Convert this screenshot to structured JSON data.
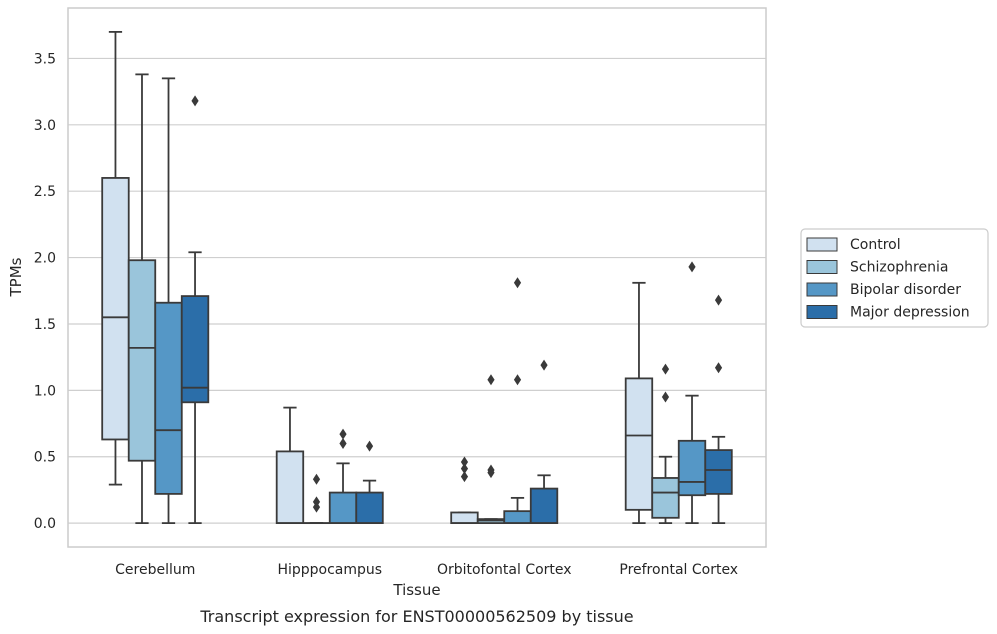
{
  "chart_data": {
    "type": "box",
    "xlabel": "Tissue",
    "ylabel": "TPMs",
    "caption": "Transcript expression for ENST00000562509 by tissue",
    "ylim": [
      -0.18,
      3.88
    ],
    "yticks": [
      0.0,
      0.5,
      1.0,
      1.5,
      2.0,
      2.5,
      3.0,
      3.5
    ],
    "yticklabels": [
      "0.0",
      "0.5",
      "1.0",
      "1.5",
      "2.0",
      "2.5",
      "3.0",
      "3.5"
    ],
    "grid": "horizontal",
    "legend_position": "right",
    "categories": [
      "Cerebellum",
      "Hipppocampus",
      "Orbitofontal Cortex",
      "Prefrontal Cortex"
    ],
    "series": [
      {
        "name": "Control",
        "color": "#d1e1f0",
        "boxes": [
          {
            "whislo": 0.29,
            "q1": 0.63,
            "med": 1.55,
            "q3": 2.6,
            "whishi": 3.7,
            "fliers": []
          },
          {
            "whislo": 0.0,
            "q1": 0.0,
            "med": 0.0,
            "q3": 0.54,
            "whishi": 0.87,
            "fliers": []
          },
          {
            "whislo": 0.0,
            "q1": 0.0,
            "med": 0.0,
            "q3": 0.08,
            "whishi": 0.08,
            "fliers": [
              0.35,
              0.41,
              0.46
            ]
          },
          {
            "whislo": 0.0,
            "q1": 0.1,
            "med": 0.66,
            "q3": 1.09,
            "whishi": 1.81,
            "fliers": []
          }
        ]
      },
      {
        "name": "Schizophrenia",
        "color": "#9ac5db",
        "boxes": [
          {
            "whislo": 0.0,
            "q1": 0.47,
            "med": 1.32,
            "q3": 1.98,
            "whishi": 3.38,
            "fliers": []
          },
          {
            "whislo": 0.0,
            "q1": 0.0,
            "med": 0.0,
            "q3": 0.0,
            "whishi": 0.0,
            "fliers": [
              0.12,
              0.16,
              0.33
            ]
          },
          {
            "whislo": 0.0,
            "q1": 0.0,
            "med": 0.02,
            "q3": 0.03,
            "whishi": 0.03,
            "fliers": [
              0.38,
              0.4,
              1.08
            ]
          },
          {
            "whislo": 0.0,
            "q1": 0.04,
            "med": 0.23,
            "q3": 0.34,
            "whishi": 0.5,
            "fliers": [
              0.95,
              1.16
            ]
          }
        ]
      },
      {
        "name": "Bipolar disorder",
        "color": "#5597c6",
        "boxes": [
          {
            "whislo": 0.0,
            "q1": 0.22,
            "med": 0.7,
            "q3": 1.66,
            "whishi": 3.35,
            "fliers": []
          },
          {
            "whislo": 0.0,
            "q1": 0.0,
            "med": 0.0,
            "q3": 0.23,
            "whishi": 0.45,
            "fliers": [
              0.6,
              0.67
            ]
          },
          {
            "whislo": 0.0,
            "q1": 0.0,
            "med": 0.0,
            "q3": 0.09,
            "whishi": 0.19,
            "fliers": [
              1.08,
              1.81
            ]
          },
          {
            "whislo": 0.0,
            "q1": 0.21,
            "med": 0.31,
            "q3": 0.62,
            "whishi": 0.96,
            "fliers": [
              1.93
            ]
          }
        ]
      },
      {
        "name": "Major depression",
        "color": "#2b6ea9",
        "boxes": [
          {
            "whislo": 0.0,
            "q1": 0.91,
            "med": 1.02,
            "q3": 1.71,
            "whishi": 2.04,
            "fliers": [
              3.18
            ]
          },
          {
            "whislo": 0.0,
            "q1": 0.0,
            "med": 0.0,
            "q3": 0.23,
            "whishi": 0.32,
            "fliers": [
              0.58
            ]
          },
          {
            "whislo": 0.0,
            "q1": 0.0,
            "med": 0.0,
            "q3": 0.26,
            "whishi": 0.36,
            "fliers": [
              1.19
            ]
          },
          {
            "whislo": 0.0,
            "q1": 0.22,
            "med": 0.4,
            "q3": 0.55,
            "whishi": 0.65,
            "fliers": [
              1.17,
              1.68
            ]
          }
        ]
      }
    ],
    "colors": {
      "line": "#3a3a3a",
      "grid": "#cfcfcf",
      "frame": "#cccccc"
    }
  }
}
